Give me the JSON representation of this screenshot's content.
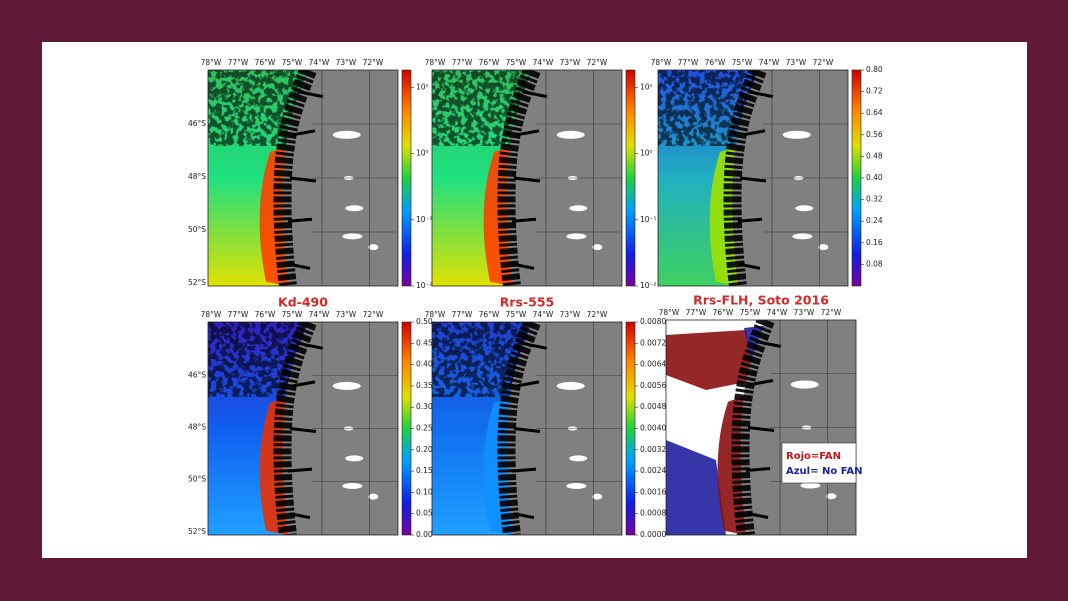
{
  "figure": {
    "lon_labels": [
      "78°W",
      "77°W",
      "76°W",
      "75°W",
      "74°W",
      "73°W",
      "72°W"
    ],
    "lat_labels": [
      "46°S",
      "48°S",
      "50°S",
      "52°S"
    ],
    "panels": [
      {
        "colorbar_ticks": [
          "10¹",
          "10⁰",
          "10⁻¹",
          "10⁻²"
        ]
      },
      {
        "colorbar_ticks": [
          "10¹",
          "10⁰",
          "10⁻¹",
          "10⁻²"
        ]
      },
      {
        "colorbar_ticks": [
          "0.80",
          "0.72",
          "0.64",
          "0.56",
          "0.48",
          "0.40",
          "0.32",
          "0.24",
          "0.16",
          "0.08"
        ]
      },
      {
        "title": "Kd-490",
        "colorbar_ticks": [
          "0.50",
          "0.45",
          "0.40",
          "0.35",
          "0.30",
          "0.25",
          "0.20",
          "0.15",
          "0.10",
          "0.05",
          "0.00"
        ]
      },
      {
        "title": "Rrs-555",
        "colorbar_ticks": [
          "0.0080",
          "0.0072",
          "0.0064",
          "0.0056",
          "0.0048",
          "0.0040",
          "0.0032",
          "0.0024",
          "0.0016",
          "0.0008",
          "0.0000"
        ]
      },
      {
        "title": "Rrs-FLH, Soto 2016",
        "legend": [
          "Rojo=FAN",
          "Azul= No FAN"
        ]
      }
    ]
  }
}
